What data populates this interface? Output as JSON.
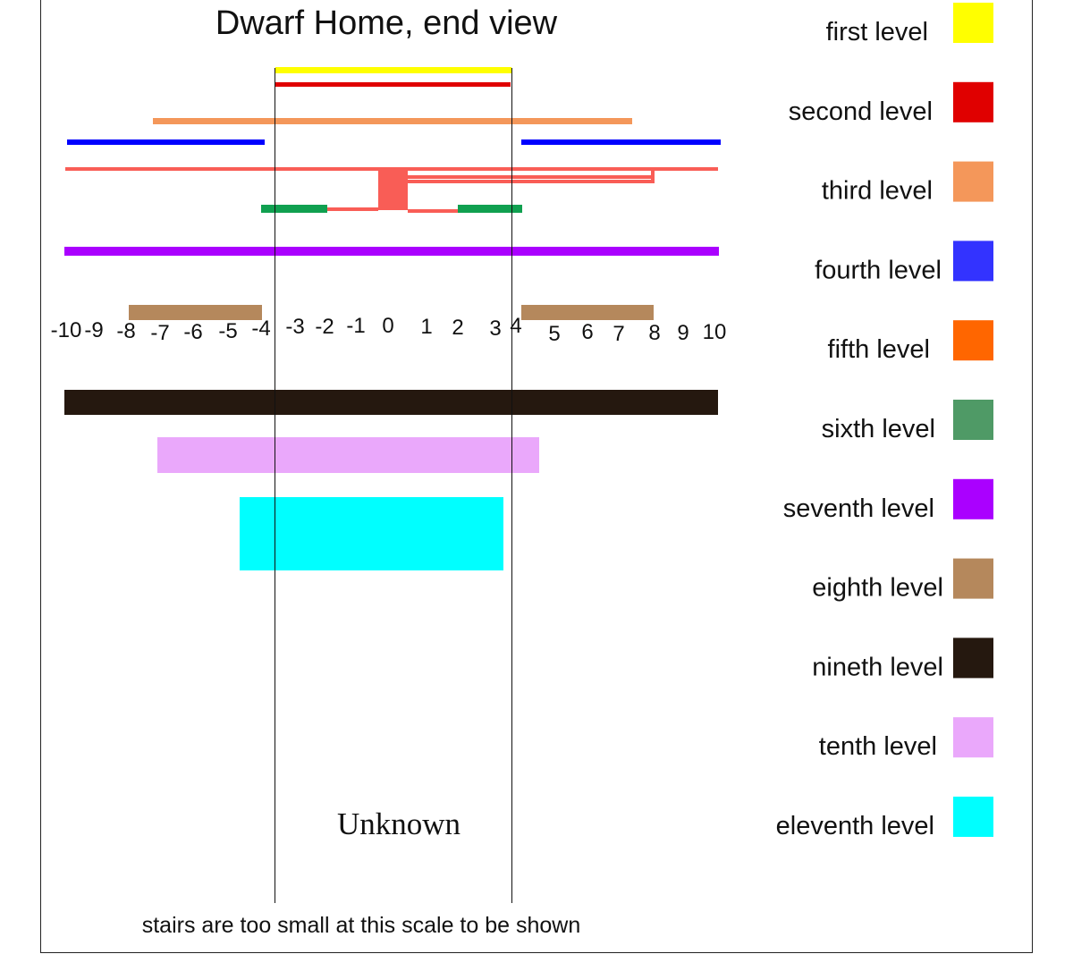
{
  "title": "Dwarf Home, end view",
  "footnote": "stairs are too small at this scale to be shown",
  "center_label": "Unknown",
  "axis_ticks": [
    "-10",
    "-9",
    "-8",
    "-7",
    "-6",
    "-5",
    "-4",
    "-3",
    "-2",
    "-1",
    "0",
    "1",
    "2",
    "3",
    "4",
    "5",
    "6",
    "7",
    "8",
    "9",
    "10"
  ],
  "legend": [
    {
      "label": "first level",
      "color": "#ffff00"
    },
    {
      "label": "second level",
      "color": "#e00000"
    },
    {
      "label": "third level",
      "color": "#f4975a"
    },
    {
      "label": "fourth level",
      "color": "#3333ff"
    },
    {
      "label": "fifth level",
      "color": "#ff6600"
    },
    {
      "label": "sixth level",
      "color": "#4f9a66"
    },
    {
      "label": "seventh level",
      "color": "#aa00ff"
    },
    {
      "label": "eighth level",
      "color": "#b5885c"
    },
    {
      "label": "nineth level",
      "color": "#25180f"
    },
    {
      "label": "tenth level",
      "color": "#eaa8fb"
    },
    {
      "label": "eleventh level",
      "color": "#00ffff"
    }
  ]
}
